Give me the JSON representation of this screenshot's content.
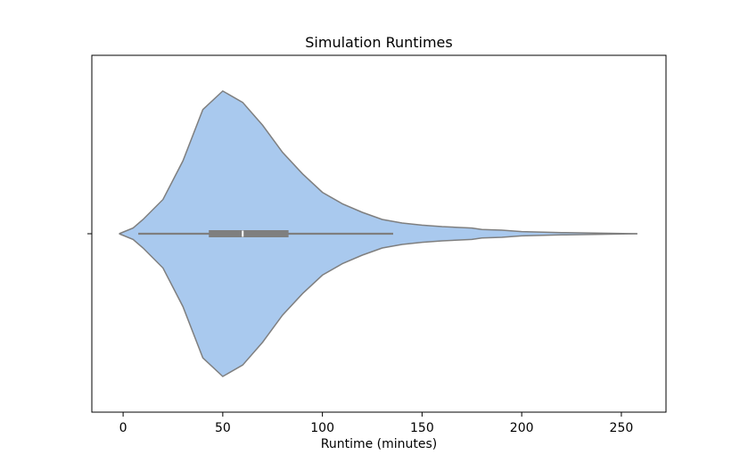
{
  "chart_data": {
    "type": "violin",
    "title": "Simulation Runtimes",
    "xlabel": "Runtime (minutes)",
    "xlim": [
      -15.7,
      272.4
    ],
    "xticks": [
      0,
      50,
      100,
      150,
      200,
      250
    ],
    "color": "#a9c9ee",
    "edge_color": "#7f7f7f",
    "x": [
      -2,
      5,
      10,
      20,
      30,
      40,
      50,
      60,
      70,
      80,
      90,
      100,
      110,
      120,
      130,
      140,
      150,
      160,
      175,
      180,
      190,
      200,
      220,
      240,
      258
    ],
    "density": [
      0,
      0.04,
      0.1,
      0.24,
      0.51,
      0.87,
      1.0,
      0.92,
      0.76,
      0.57,
      0.42,
      0.29,
      0.21,
      0.15,
      0.1,
      0.075,
      0.06,
      0.05,
      0.04,
      0.03,
      0.025,
      0.015,
      0.008,
      0.004,
      0
    ],
    "whisker_low": 7.6,
    "q1": 43,
    "median": 60,
    "q3": 83,
    "whisker_high": 135.5
  }
}
